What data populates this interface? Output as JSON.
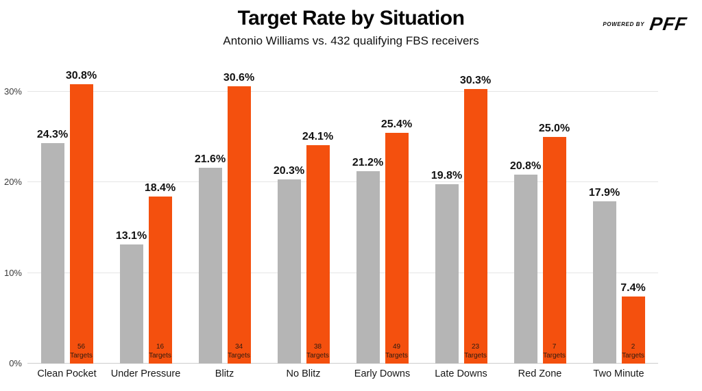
{
  "header": {
    "title": "Target Rate by Situation",
    "subtitle": "Antonio Williams vs. 432 qualifying FBS receivers"
  },
  "logo": {
    "powered_by": "POWERED BY",
    "brand": "PFF"
  },
  "chart_data": {
    "type": "bar",
    "title": "Target Rate by Situation",
    "subtitle": "Antonio Williams vs. 432 qualifying FBS receivers",
    "categories": [
      "Clean Pocket",
      "Under Pressure",
      "Blitz",
      "No Blitz",
      "Early Downs",
      "Late Downs",
      "Red Zone",
      "Two Minute"
    ],
    "series": [
      {
        "name": "gray-comparison-bars",
        "color": "#b5b5b5",
        "values": [
          24.3,
          13.1,
          21.6,
          20.3,
          21.2,
          19.8,
          20.8,
          17.9
        ],
        "labels": [
          "24.3%",
          "13.1%",
          "21.6%",
          "20.3%",
          "21.2%",
          "19.8%",
          "20.8%",
          "17.9%"
        ]
      },
      {
        "name": "orange-highlight-bars",
        "color": "#f4500e",
        "values": [
          30.8,
          18.4,
          30.6,
          24.1,
          25.4,
          30.3,
          25.0,
          7.4
        ],
        "labels": [
          "30.8%",
          "18.4%",
          "30.6%",
          "24.1%",
          "25.4%",
          "30.3%",
          "25.0%",
          "7.4%"
        ],
        "target_counts": [
          56,
          16,
          34,
          38,
          49,
          23,
          7,
          2
        ],
        "target_word": "Targets"
      }
    ],
    "xlabel": "",
    "ylabel": "",
    "ylim": [
      0,
      32.6
    ],
    "yticks": [
      {
        "value": 0,
        "label": "0%"
      },
      {
        "value": 10,
        "label": "10%"
      },
      {
        "value": 20,
        "label": "20%"
      },
      {
        "value": 30,
        "label": "30%"
      }
    ],
    "grid": true,
    "legend_position": "none"
  },
  "colors": {
    "gray_bar": "#b5b5b5",
    "orange_bar": "#f4500e",
    "gridline": "#e4e4e4",
    "baseline": "#cccccc",
    "axis_text": "#3a3a3a",
    "value_label": "#121212",
    "target_label": "#2e1a10"
  }
}
